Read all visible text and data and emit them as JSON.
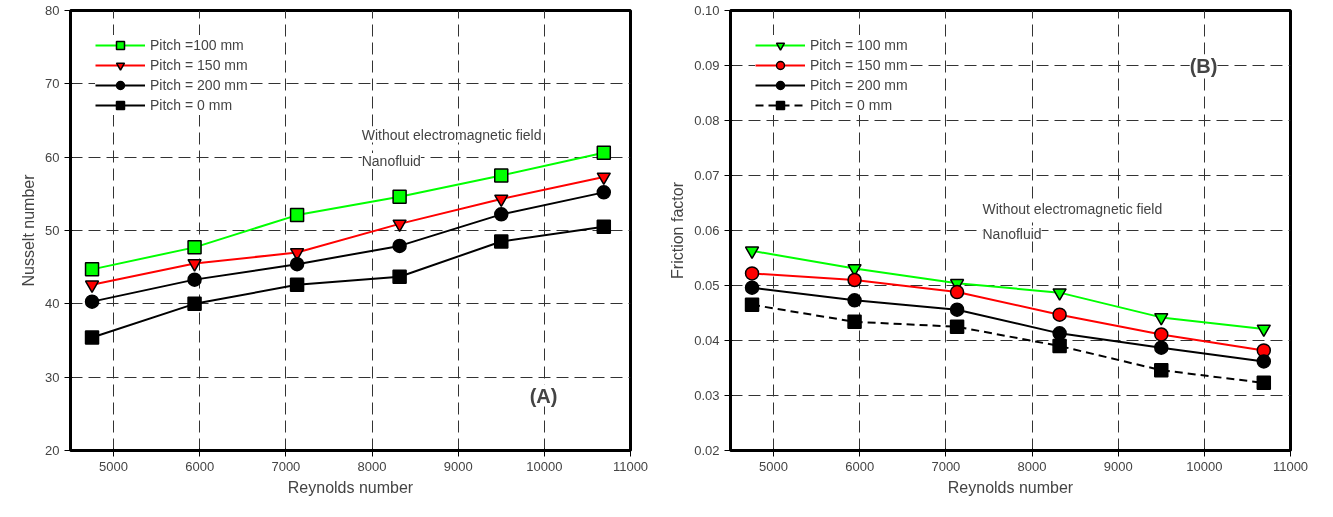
{
  "chart_data": [
    {
      "type": "line",
      "xlabel": "Reynolds number",
      "ylabel": "Nusselt number",
      "x": [
        4750,
        5940,
        7130,
        8320,
        9500,
        10690
      ],
      "xlim": [
        4500,
        11000
      ],
      "xticks": [
        5000,
        6000,
        7000,
        8000,
        9000,
        10000,
        11000
      ],
      "ylim": [
        20,
        80
      ],
      "yticks": [
        20,
        30,
        40,
        50,
        60,
        70,
        80
      ],
      "grid": true,
      "legend": "top left",
      "annotations": [
        "Without electromagnetic field",
        "Nanofluid",
        "(A)"
      ],
      "series": [
        {
          "name": "Pitch =100 mm",
          "color": "#00ff00",
          "marker": "square",
          "line_style": "solid",
          "values": [
            44.7,
            47.7,
            52.1,
            54.6,
            57.5,
            60.6
          ]
        },
        {
          "name": "Pitch = 150 mm",
          "color": "#ff0000",
          "marker": "triangle",
          "line_style": "solid",
          "values": [
            42.6,
            45.5,
            47.0,
            50.9,
            54.3,
            57.3
          ]
        },
        {
          "name": "Pitch = 200 mm",
          "color": "#000000",
          "marker": "circle",
          "line_style": "solid",
          "values": [
            40.3,
            43.3,
            45.4,
            47.9,
            52.2,
            55.2
          ]
        },
        {
          "name": "Pitch = 0 mm",
          "color": "#000000",
          "marker": "square",
          "line_style": "solid",
          "values": [
            35.4,
            40.0,
            42.6,
            43.7,
            48.5,
            50.5
          ]
        }
      ]
    },
    {
      "type": "line",
      "xlabel": "Reynolds number",
      "ylabel": "Friction factor",
      "x": [
        4750,
        5940,
        7130,
        8320,
        9500,
        10690
      ],
      "xlim": [
        4500,
        11000
      ],
      "xticks": [
        5000,
        6000,
        7000,
        8000,
        9000,
        10000,
        11000
      ],
      "ylim": [
        0.02,
        0.1
      ],
      "yticks": [
        {
          "value": 0.02,
          "label": "0.02"
        },
        {
          "value": 0.03,
          "label": "0.03"
        },
        {
          "value": 0.04,
          "label": "0.04"
        },
        {
          "value": 0.05,
          "label": "0.05"
        },
        {
          "value": 0.06,
          "label": "0.06"
        },
        {
          "value": 0.07,
          "label": "0.07"
        },
        {
          "value": 0.08,
          "label": "0.08"
        },
        {
          "value": 0.09,
          "label": "0.09"
        },
        {
          "value": 0.1,
          "label": "0.10"
        }
      ],
      "grid": true,
      "legend": "top left",
      "annotations": [
        "Without electromagnetic field",
        "Nanofluid",
        "(B)"
      ],
      "series": [
        {
          "name": "Pitch = 100 mm",
          "color": "#00ff00",
          "marker": "triangle",
          "line_style": "solid",
          "values": [
            0.0563,
            0.0531,
            0.0504,
            0.0487,
            0.0442,
            0.0421
          ]
        },
        {
          "name": "Pitch = 150 mm",
          "color": "#ff0000",
          "marker": "circle",
          "line_style": "solid",
          "values": [
            0.0522,
            0.051,
            0.0488,
            0.0447,
            0.0411,
            0.0382
          ]
        },
        {
          "name": "Pitch = 200 mm",
          "color": "#000000",
          "marker": "circle",
          "line_style": "solid",
          "values": [
            0.0496,
            0.0473,
            0.0456,
            0.0413,
            0.0387,
            0.0362
          ]
        },
        {
          "name": "Pitch = 0 mm",
          "color": "#000000",
          "marker": "square",
          "line_style": "dashed",
          "values": [
            0.0465,
            0.0434,
            0.0425,
            0.039,
            0.0346,
            0.0323
          ]
        }
      ]
    }
  ]
}
